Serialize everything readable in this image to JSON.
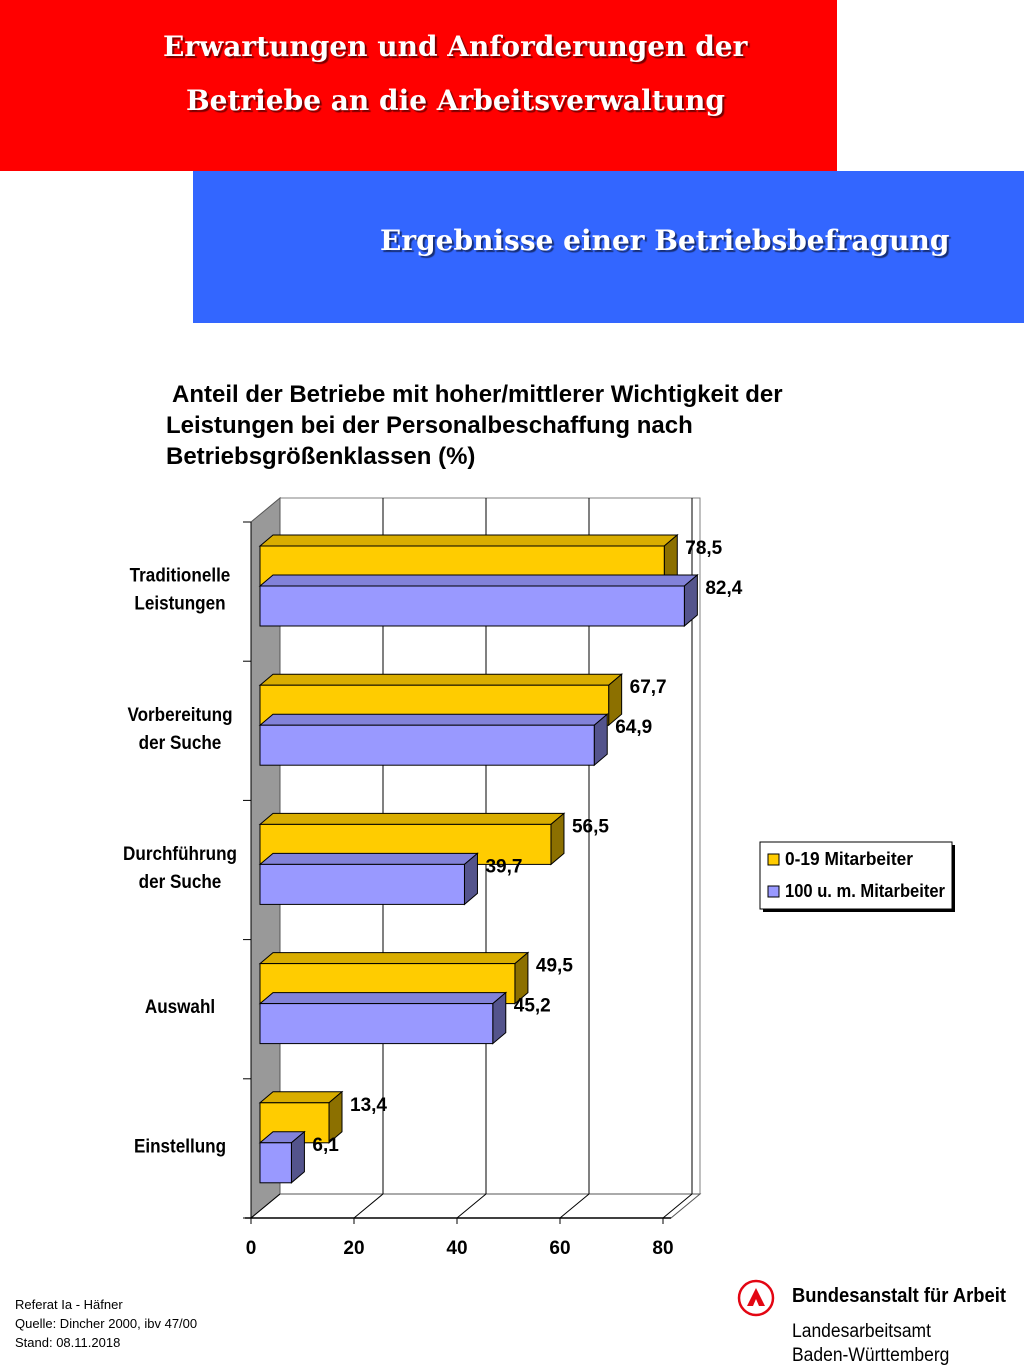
{
  "header": {
    "line1": "Erwartungen und Anforderungen der",
    "line2": "Betriebe an die Arbeitsverwaltung",
    "subtitle": "Ergebnisse einer Betriebsbefragung"
  },
  "chart_title": {
    "line1": "Anteil der Betriebe mit hoher/mittlerer Wichtigkeit der",
    "line2": "Leistungen bei der Personalbeschaffung nach",
    "line3": "Betriebsgrößenklassen (%)"
  },
  "chart_data": {
    "type": "bar",
    "orientation": "horizontal",
    "three_d": true,
    "title": "Anteil der Betriebe mit hoher/mittlerer Wichtigkeit der Leistungen bei der Personalbeschaffung nach Betriebsgrößenklassen (%)",
    "categories": [
      [
        "Traditionelle",
        "Leistungen"
      ],
      [
        "Vorbereitung",
        "der Suche"
      ],
      [
        "Durchführung",
        "der Suche"
      ],
      [
        "Auswahl"
      ],
      [
        "Einstellung"
      ]
    ],
    "series": [
      {
        "name": "0-19 Mitarbeiter",
        "color": "#ffcc00",
        "values": [
          78.5,
          67.7,
          56.5,
          49.5,
          13.4
        ],
        "labels": [
          "78,5",
          "67,7",
          "56,5",
          "49,5",
          "13,4"
        ]
      },
      {
        "name": "100 u. m. Mitarbeiter",
        "color": "#9999ff",
        "values": [
          82.4,
          64.9,
          39.7,
          45.2,
          6.1
        ],
        "labels": [
          "82,4",
          "64,9",
          "39,7",
          "45,2",
          "6,1"
        ]
      }
    ],
    "x_ticks": [
      "0",
      "20",
      "40",
      "60",
      "80"
    ],
    "xlim": [
      0,
      80
    ],
    "grid": true,
    "legend_position": "right"
  },
  "footer": {
    "line1": "Referat Ia - Häfner",
    "line2": "Quelle: Dincher 2000, ibv 47/00",
    "line3": "Stand: 08.11.2018"
  },
  "org": {
    "name": "Bundesanstalt für Arbeit",
    "sub1": "Landesarbeitsamt",
    "sub2": "Baden-Württemberg"
  }
}
